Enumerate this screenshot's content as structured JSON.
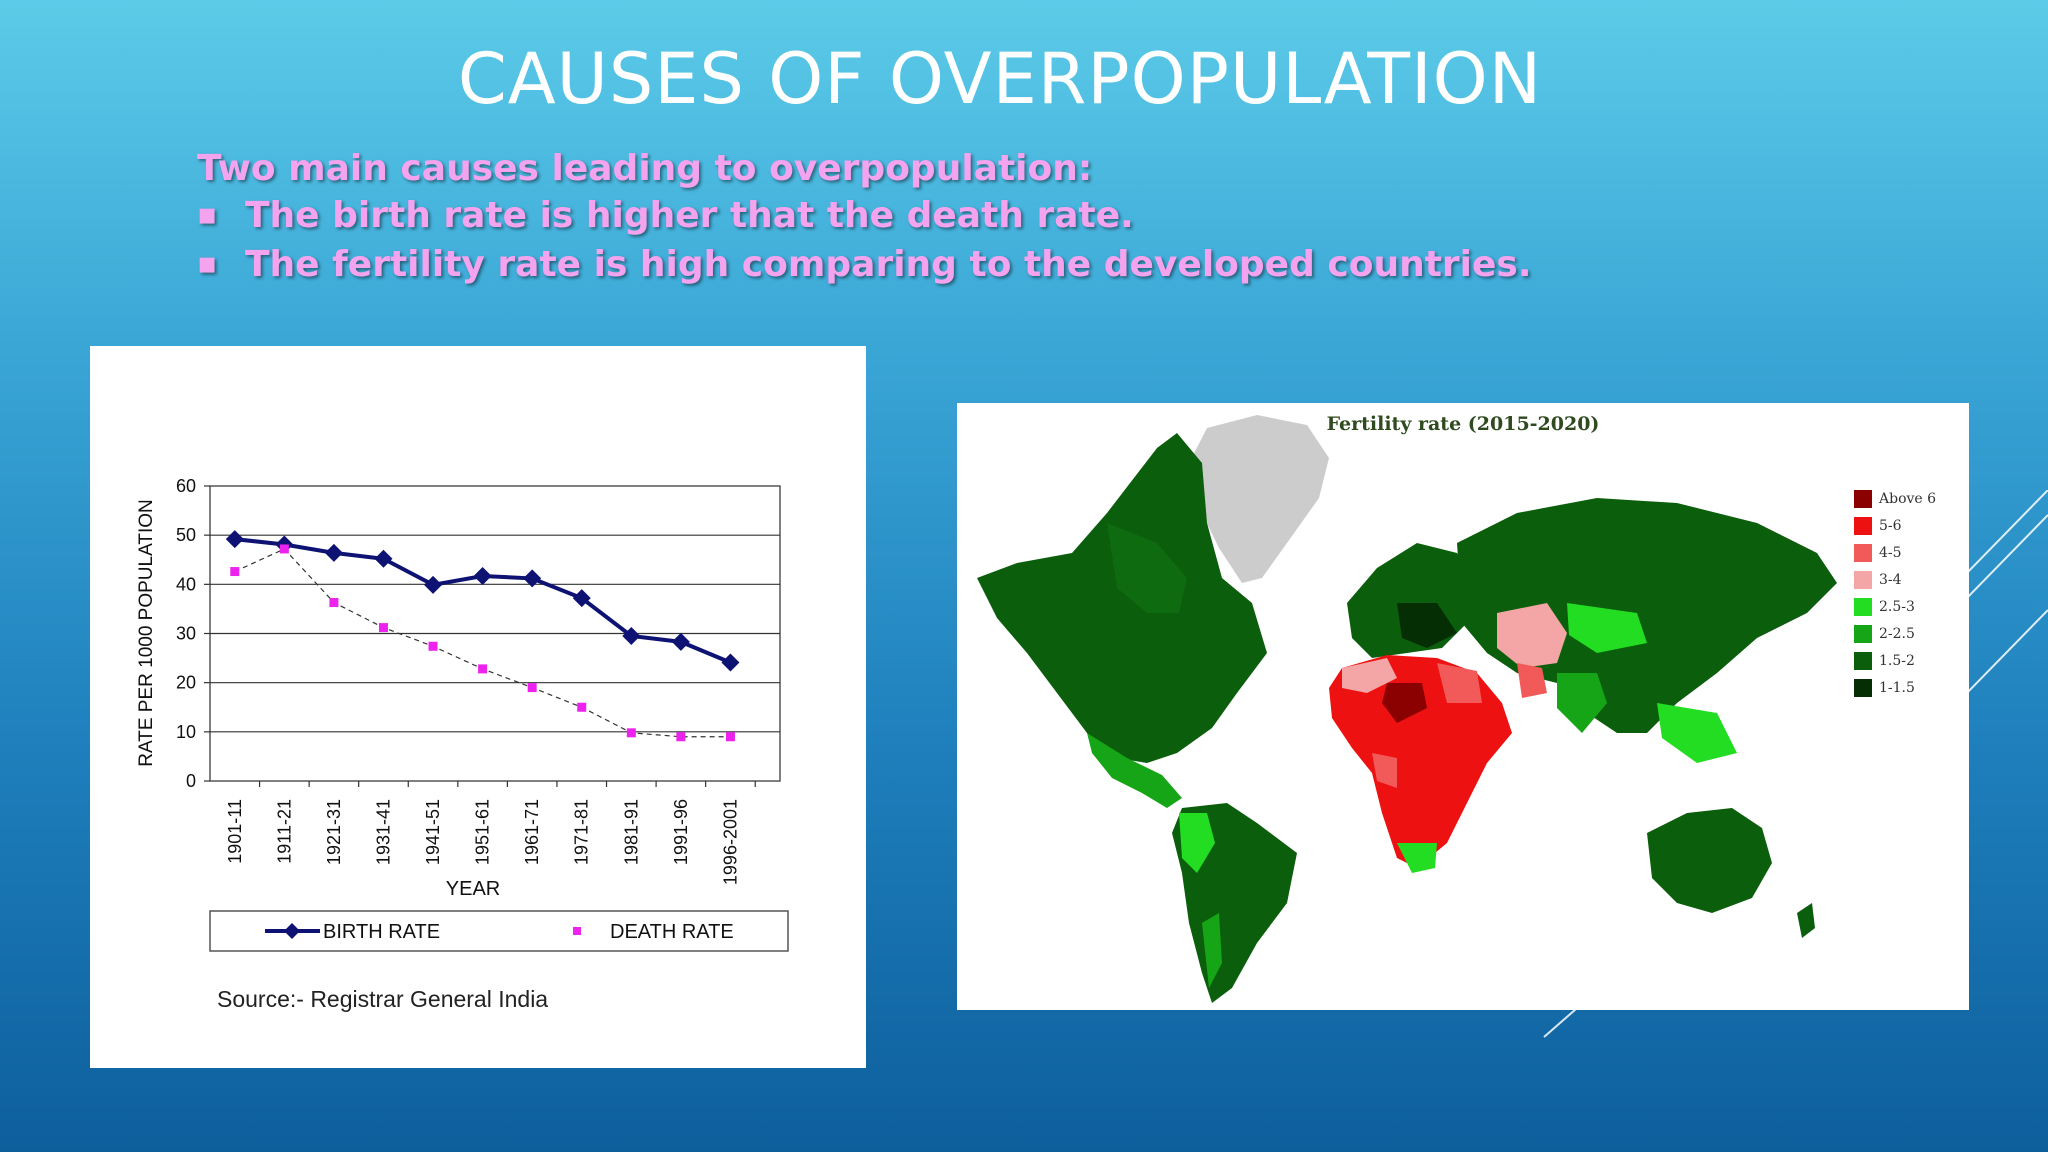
{
  "slide": {
    "title": "CAUSES OF OVERPOPULATION",
    "intro": "Two main causes leading to overpopulation:",
    "bullets": [
      "The birth rate is higher that the death rate.",
      "The fertility rate is high comparing to the developed countries."
    ],
    "bullet_glyph": "▪",
    "text_color": "#f4a3ee"
  },
  "chart_data": {
    "type": "line",
    "categories": [
      "1901-11",
      "1911-21",
      "1921-31",
      "1931-41",
      "1941-51",
      "1951-61",
      "1961-71",
      "1971-81",
      "1981-91",
      "1991-96",
      "1996-2001"
    ],
    "series": [
      {
        "name": "BIRTH RATE",
        "values": [
          49.2,
          48.1,
          46.4,
          45.2,
          39.9,
          41.7,
          41.2,
          37.2,
          29.5,
          28.3,
          24.1
        ],
        "color": "#0d1273",
        "marker": "diamond"
      },
      {
        "name": "DEATH RATE",
        "values": [
          42.6,
          47.2,
          36.3,
          31.2,
          27.4,
          22.8,
          19.0,
          15.0,
          9.8,
          9.0,
          9.0
        ],
        "color": "#ee22ee",
        "marker": "square",
        "line": "dashed"
      }
    ],
    "xlabel": "YEAR",
    "ylabel": "RATE PER 1000 POPULATION",
    "ylim": [
      0,
      60
    ],
    "yticks": [
      "0",
      "10",
      "20",
      "30",
      "40",
      "50",
      "60"
    ],
    "grid": true,
    "legend": "bottom",
    "source": "Source:- Registrar General India"
  },
  "map": {
    "title": "Fertility rate (2015-2020)",
    "legend": [
      {
        "label": "Above 6",
        "color": "#8b0000"
      },
      {
        "label": "5-6",
        "color": "#ee1111"
      },
      {
        "label": "4-5",
        "color": "#f25a5a"
      },
      {
        "label": "3-4",
        "color": "#f4a6a6"
      },
      {
        "label": "2.5-3",
        "color": "#22dd22"
      },
      {
        "label": "2-2.5",
        "color": "#16a516"
      },
      {
        "label": "1.5-2",
        "color": "#0b5e0b"
      },
      {
        "label": "1-1.5",
        "color": "#052e05"
      }
    ]
  }
}
